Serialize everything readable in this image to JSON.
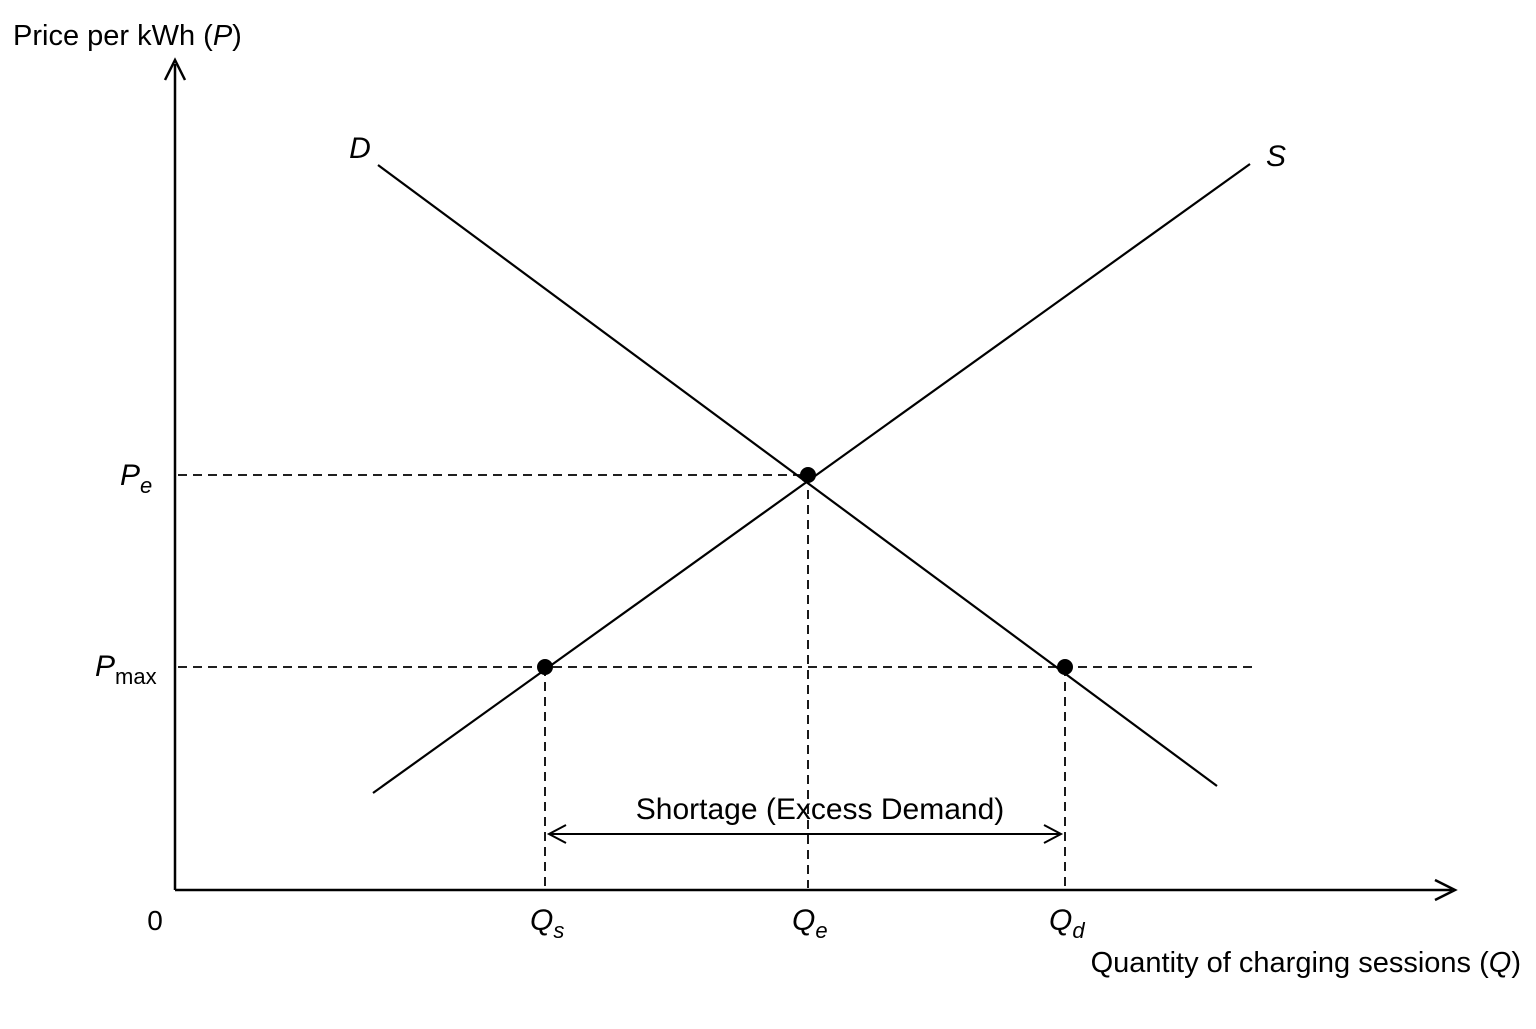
{
  "diagram": {
    "y_axis_title": {
      "text": "Price per kWh (",
      "var": "P",
      "close": ")"
    },
    "x_axis_title": {
      "text": "Quantity of charging sessions (",
      "var": "Q",
      "close": ")"
    },
    "origin_label": "0",
    "demand_label": "D",
    "supply_label": "S",
    "price_labels": {
      "equilibrium": {
        "main": "P",
        "sub": "e"
      },
      "ceiling": {
        "main": "P",
        "sub": "max"
      }
    },
    "quantity_labels": {
      "supplied": {
        "main": "Q",
        "sub": "s"
      },
      "equilibrium": {
        "main": "Q",
        "sub": "e"
      },
      "demanded": {
        "main": "Q",
        "sub": "d"
      }
    },
    "shortage_label": "Shortage (Excess Demand)",
    "colors": {
      "ink": "#000000",
      "background": "#ffffff"
    }
  }
}
